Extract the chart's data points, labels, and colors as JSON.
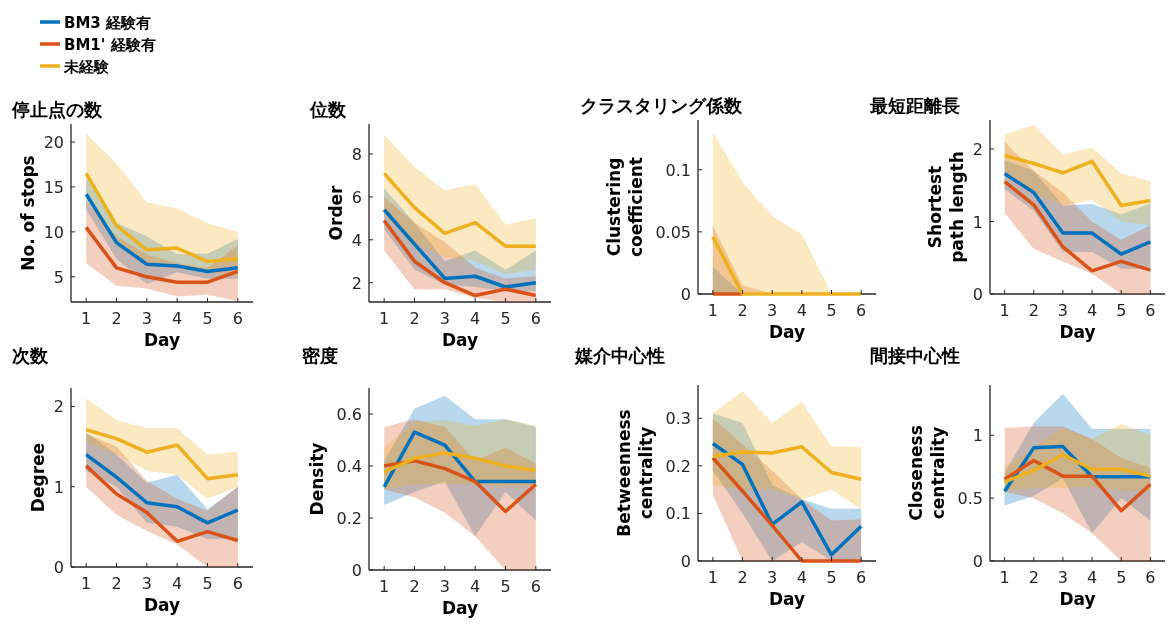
{
  "chart_data": [
    {
      "type": "line",
      "title": "停止点の数",
      "xlabel": "Day",
      "ylabel": "No. of stops",
      "x": [
        1,
        2,
        3,
        4,
        5,
        6
      ],
      "xlim": [
        0.5,
        6.5
      ],
      "xticks": [
        1,
        2,
        3,
        4,
        5,
        6
      ],
      "ylim": [
        2.2,
        22
      ],
      "yticks": [
        5,
        10,
        15,
        20
      ],
      "legend": "top left",
      "series": [
        {
          "name": "BM3 経験有",
          "color": "#0072bd",
          "values": [
            14.2,
            8.8,
            6.4,
            6.2,
            5.6,
            6.0
          ],
          "lower": [
            12.5,
            7.0,
            4.2,
            5.5,
            4.8,
            4.8
          ],
          "upper": [
            16.0,
            11.0,
            9.5,
            7.5,
            7.6,
            9.2
          ]
        },
        {
          "name": "BM1' 経験有",
          "color": "#d95319",
          "values": [
            10.5,
            6.0,
            5.0,
            4.4,
            4.4,
            5.6
          ],
          "lower": [
            6.5,
            4.0,
            3.7,
            2.8,
            3.0,
            2.3
          ],
          "upper": [
            13.5,
            9.5,
            7.5,
            6.5,
            6.0,
            8.5
          ]
        },
        {
          "name": "未経験",
          "color": "#edb120",
          "values": [
            16.5,
            10.7,
            8.0,
            8.2,
            6.7,
            7.0
          ],
          "lower": [
            13.5,
            8.5,
            6.5,
            6.5,
            5.5,
            5.0
          ],
          "upper": [
            20.9,
            17.6,
            13.3,
            12.6,
            11.0,
            10.0
          ]
        }
      ]
    },
    {
      "type": "line",
      "title": "位数",
      "xlabel": "Day",
      "ylabel": "Order",
      "x": [
        1,
        2,
        3,
        4,
        5,
        6
      ],
      "xlim": [
        0.5,
        6.5
      ],
      "xticks": [
        1,
        2,
        3,
        4,
        5,
        6
      ],
      "ylim": [
        1.1,
        9.4
      ],
      "yticks": [
        2,
        4,
        6,
        8
      ],
      "series": [
        {
          "color": "#0072bd",
          "values": [
            5.4,
            3.8,
            2.2,
            2.3,
            1.8,
            2.0
          ],
          "lower": [
            4.5,
            2.6,
            1.9,
            1.8,
            1.6,
            1.6
          ],
          "upper": [
            6.4,
            4.8,
            3.0,
            3.5,
            2.6,
            3.5
          ]
        },
        {
          "color": "#d95319",
          "values": [
            4.9,
            3.0,
            2.0,
            1.4,
            1.7,
            1.4
          ],
          "lower": [
            3.5,
            1.7,
            1.7,
            1.3,
            1.1,
            1.1
          ],
          "upper": [
            6.0,
            4.8,
            3.9,
            2.7,
            2.2,
            2.3
          ]
        },
        {
          "color": "#edb120",
          "values": [
            7.1,
            5.5,
            4.3,
            4.8,
            3.7,
            3.7
          ],
          "lower": [
            5.2,
            3.8,
            3.2,
            3.0,
            2.4,
            2.6
          ],
          "upper": [
            8.9,
            7.4,
            6.3,
            6.6,
            4.7,
            5.0
          ]
        }
      ]
    },
    {
      "type": "line",
      "title": "クラスタリング係数",
      "xlabel": "Day",
      "ylabel": "Clustering coefficient",
      "x": [
        1,
        2,
        3,
        4,
        5,
        6
      ],
      "xlim": [
        0.5,
        6.5
      ],
      "xticks": [
        1,
        2,
        3,
        4,
        5,
        6
      ],
      "ylim": [
        0,
        0.14
      ],
      "yticks": [
        0,
        0.05,
        0.1
      ],
      "series": [
        {
          "color": "#0072bd",
          "values": [
            null,
            null,
            null,
            null,
            null,
            null
          ],
          "lower": [
            0,
            0,
            0,
            0,
            0,
            0
          ],
          "upper": [
            0.022,
            0,
            0,
            0,
            0,
            0
          ]
        },
        {
          "color": "#d95319",
          "values": [
            0,
            0,
            null,
            null,
            null,
            null
          ],
          "lower": [
            0,
            0,
            0,
            0,
            0,
            0
          ],
          "upper": [
            0.055,
            0.007,
            0,
            0,
            0,
            0
          ]
        },
        {
          "color": "#edb120",
          "values": [
            0.046,
            0,
            0,
            0,
            0,
            0
          ],
          "lower": [
            0,
            0,
            0,
            0,
            0,
            0
          ],
          "upper": [
            0.13,
            0.09,
            0.063,
            0.048,
            0,
            0
          ]
        }
      ]
    },
    {
      "type": "line",
      "title": "最短距離長",
      "xlabel": "Day",
      "ylabel": "Shortest path length",
      "x": [
        1,
        2,
        3,
        4,
        5,
        6
      ],
      "xlim": [
        0.5,
        6.5
      ],
      "xticks": [
        1,
        2,
        3,
        4,
        5,
        6
      ],
      "ylim": [
        0,
        2.4
      ],
      "yticks": [
        0,
        1,
        2
      ],
      "series": [
        {
          "color": "#0072bd",
          "values": [
            1.66,
            1.4,
            0.84,
            0.84,
            0.55,
            0.72
          ],
          "lower": [
            1.45,
            1.15,
            0.58,
            0.58,
            0.35,
            0.35
          ],
          "upper": [
            1.85,
            1.7,
            1.22,
            1.24,
            1.1,
            1.25
          ]
        },
        {
          "color": "#d95319",
          "values": [
            1.55,
            1.23,
            0.65,
            0.32,
            0.45,
            0.33
          ],
          "lower": [
            1.12,
            0.62,
            0.45,
            0.28,
            0,
            0
          ],
          "upper": [
            2.1,
            1.7,
            1.4,
            1.0,
            0.75,
            0.95
          ]
        },
        {
          "color": "#edb120",
          "values": [
            1.91,
            1.8,
            1.67,
            1.83,
            1.22,
            1.29
          ],
          "lower": [
            1.65,
            1.4,
            1.22,
            1.3,
            1.0,
            0.95
          ],
          "upper": [
            2.2,
            2.33,
            1.92,
            2.02,
            1.66,
            1.56
          ]
        }
      ]
    },
    {
      "type": "line",
      "title": "次数",
      "xlabel": "Day",
      "ylabel": "Degree",
      "x": [
        1,
        2,
        3,
        4,
        5,
        6
      ],
      "xlim": [
        0.5,
        6.5
      ],
      "xticks": [
        1,
        2,
        3,
        4,
        5,
        6
      ],
      "ylim": [
        0,
        2.23
      ],
      "yticks": [
        0,
        1,
        2
      ],
      "series": [
        {
          "color": "#0072bd",
          "values": [
            1.4,
            1.12,
            0.8,
            0.75,
            0.55,
            0.71
          ],
          "lower": [
            1.2,
            1.0,
            0.55,
            0.5,
            0.35,
            0.35
          ],
          "upper": [
            1.68,
            1.4,
            1.05,
            1.15,
            0.72,
            1.0
          ]
        },
        {
          "color": "#d95319",
          "values": [
            1.26,
            0.91,
            0.68,
            0.32,
            0.44,
            0.33
          ],
          "lower": [
            1.0,
            0.65,
            0.45,
            0.28,
            0,
            0
          ],
          "upper": [
            1.66,
            1.5,
            1.07,
            0.85,
            0.7,
            1.0
          ]
        },
        {
          "color": "#edb120",
          "values": [
            1.71,
            1.6,
            1.43,
            1.52,
            1.1,
            1.15
          ],
          "lower": [
            1.55,
            1.4,
            1.2,
            1.15,
            0.85,
            1.0
          ],
          "upper": [
            2.1,
            1.83,
            1.73,
            1.73,
            1.4,
            1.44
          ]
        }
      ]
    },
    {
      "type": "line",
      "title": "密度",
      "xlabel": "Day",
      "ylabel": "Density",
      "x": [
        1,
        2,
        3,
        4,
        5,
        6
      ],
      "xlim": [
        0.5,
        6.5
      ],
      "xticks": [
        1,
        2,
        3,
        4,
        5,
        6
      ],
      "ylim": [
        0,
        0.7
      ],
      "yticks": [
        0,
        0.2,
        0.4,
        0.6
      ],
      "series": [
        {
          "color": "#0072bd",
          "values": [
            0.32,
            0.53,
            0.48,
            0.34,
            0.34,
            0.34
          ],
          "lower": [
            0.25,
            0.3,
            0.34,
            0.13,
            0.3,
            0.19
          ],
          "upper": [
            0.42,
            0.62,
            0.67,
            0.58,
            0.58,
            0.55
          ]
        },
        {
          "color": "#d95319",
          "values": [
            0.4,
            0.42,
            0.39,
            0.34,
            0.225,
            0.33
          ],
          "lower": [
            0.31,
            0.28,
            0.22,
            0.13,
            0,
            0
          ],
          "upper": [
            0.55,
            0.58,
            0.55,
            0.42,
            0.47,
            0.41
          ]
        },
        {
          "color": "#edb120",
          "values": [
            0.376,
            0.43,
            0.45,
            0.43,
            0.4,
            0.383
          ],
          "lower": [
            0.31,
            0.33,
            0.33,
            0.33,
            0.32,
            0.32
          ],
          "upper": [
            0.47,
            0.57,
            0.575,
            0.555,
            0.58,
            0.555
          ]
        }
      ]
    },
    {
      "type": "line",
      "title": "媒介中心性",
      "xlabel": "Day",
      "ylabel": "Betweenness centrality",
      "x": [
        1,
        2,
        3,
        4,
        5,
        6
      ],
      "xlim": [
        0.5,
        6.5
      ],
      "xticks": [
        1,
        2,
        3,
        4,
        5,
        6
      ],
      "ylim": [
        0,
        0.37
      ],
      "yticks": [
        0,
        0.1,
        0.2,
        0.3
      ],
      "series": [
        {
          "color": "#0072bd",
          "values": [
            0.247,
            0.203,
            0.077,
            0.124,
            0.013,
            0.073
          ],
          "lower": [
            0.19,
            0.1,
            0,
            0.04,
            0,
            0
          ],
          "upper": [
            0.31,
            0.29,
            0.16,
            0.13,
            0.11,
            0.11
          ]
        },
        {
          "color": "#d95319",
          "values": [
            0.217,
            0.147,
            0.075,
            0,
            0,
            0
          ],
          "lower": [
            0.14,
            0,
            0,
            0,
            0,
            0
          ],
          "upper": [
            0.3,
            0.245,
            0.19,
            0.13,
            0.085,
            0.088
          ]
        },
        {
          "color": "#edb120",
          "values": [
            0.22,
            0.229,
            0.227,
            0.24,
            0.186,
            0.172
          ],
          "lower": [
            0.16,
            0.15,
            0.15,
            0.13,
            0.15,
            0.11
          ],
          "upper": [
            0.31,
            0.357,
            0.29,
            0.335,
            0.24,
            0.24
          ]
        }
      ]
    },
    {
      "type": "line",
      "title": "間接中心性",
      "xlabel": "Day",
      "ylabel": "Closeness centrality",
      "x": [
        1,
        2,
        3,
        4,
        5,
        6
      ],
      "xlim": [
        0.5,
        6.5
      ],
      "xticks": [
        1,
        2,
        3,
        4,
        5,
        6
      ],
      "ylim": [
        0,
        1.4
      ],
      "yticks": [
        0,
        0.5,
        1
      ],
      "series": [
        {
          "color": "#0072bd",
          "values": [
            0.555,
            0.9,
            0.91,
            0.67,
            0.67,
            0.67
          ],
          "lower": [
            0.44,
            0.52,
            0.66,
            0.22,
            0.5,
            0.32
          ],
          "upper": [
            0.7,
            1.1,
            1.33,
            1.05,
            1.05,
            1.05
          ]
        },
        {
          "color": "#d95319",
          "values": [
            0.65,
            0.8,
            0.675,
            0.675,
            0.4,
            0.61
          ],
          "lower": [
            0.55,
            0.5,
            0.38,
            0.22,
            0,
            0
          ],
          "upper": [
            1.06,
            1.07,
            1.07,
            0.97,
            0.82,
            0.74
          ]
        },
        {
          "color": "#edb120",
          "values": [
            0.63,
            0.72,
            0.845,
            0.73,
            0.73,
            0.675
          ],
          "lower": [
            0.56,
            0.58,
            0.58,
            0.59,
            0.56,
            0.55
          ],
          "upper": [
            0.75,
            0.9,
            1.06,
            0.97,
            1.09,
            1.0
          ]
        }
      ]
    }
  ]
}
